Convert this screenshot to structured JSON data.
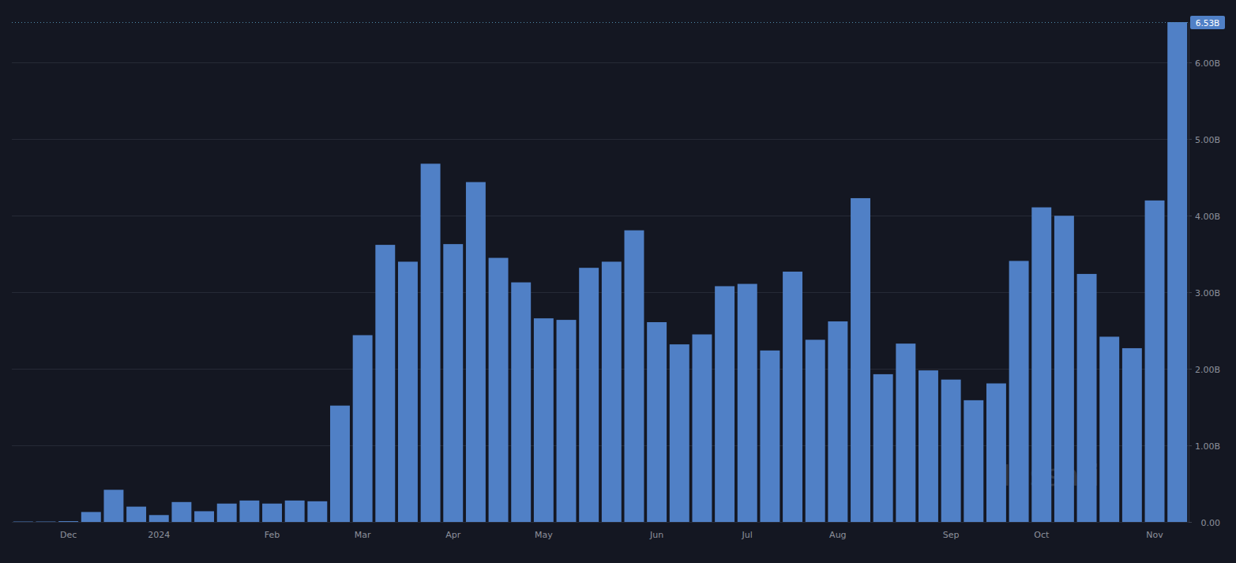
{
  "chart_data": {
    "type": "bar",
    "categories": [
      null,
      null,
      "Dec",
      null,
      null,
      null,
      "2024",
      null,
      null,
      null,
      null,
      "Feb",
      null,
      null,
      null,
      "Mar",
      null,
      null,
      null,
      "Apr",
      null,
      null,
      null,
      "May",
      null,
      null,
      null,
      null,
      "Jun",
      null,
      null,
      null,
      "Jul",
      null,
      null,
      null,
      "Aug",
      null,
      null,
      null,
      null,
      "Sep",
      null,
      null,
      null,
      "Oct",
      null,
      null,
      null,
      null,
      "Nov",
      null
    ],
    "values": [
      0.005,
      0.005,
      0.01,
      0.13,
      0.42,
      0.2,
      0.09,
      0.26,
      0.14,
      0.24,
      0.28,
      0.24,
      0.28,
      0.27,
      1.52,
      2.44,
      3.62,
      3.4,
      4.68,
      3.63,
      4.44,
      3.45,
      3.13,
      2.66,
      2.64,
      3.32,
      3.4,
      3.81,
      2.61,
      2.32,
      2.45,
      3.08,
      3.11,
      2.24,
      3.27,
      2.38,
      2.62,
      4.23,
      1.93,
      2.33,
      1.98,
      1.86,
      1.59,
      1.81,
      3.41,
      4.11,
      4.0,
      3.24,
      2.42,
      2.27,
      4.2,
      6.53
    ],
    "color": "#5080c6",
    "ylim": [
      0,
      6.53
    ],
    "yticks": [
      {
        "value": 0,
        "label": "0.00"
      },
      {
        "value": 1,
        "label": "1.00B"
      },
      {
        "value": 2,
        "label": "2.00B"
      },
      {
        "value": 3,
        "label": "3.00B"
      },
      {
        "value": 4,
        "label": "4.00B"
      },
      {
        "value": 5,
        "label": "5.00B"
      },
      {
        "value": 6,
        "label": "6.00B"
      }
    ],
    "grid": true,
    "annotations": [
      {
        "text": "6.53B",
        "value": 6.53
      },
      {
        "text": "Messari"
      }
    ]
  }
}
